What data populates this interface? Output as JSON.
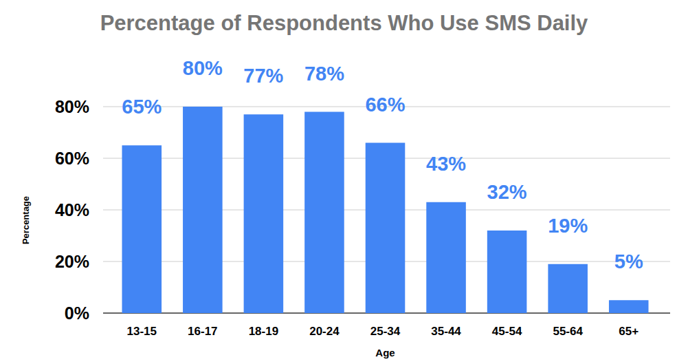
{
  "chart_data": {
    "type": "bar",
    "title": "Percentage of Respondents Who Use SMS Daily",
    "x_label": "Age",
    "y_label": "Percentage",
    "categories": [
      "13-15",
      "16-17",
      "18-19",
      "20-24",
      "25-34",
      "35-44",
      "45-54",
      "55-64",
      "65+"
    ],
    "values": [
      65,
      80,
      77,
      78,
      66,
      43,
      32,
      19,
      5
    ],
    "value_labels": [
      "65%",
      "80%",
      "77%",
      "78%",
      "66%",
      "43%",
      "32%",
      "19%",
      "5%"
    ],
    "color": "#4285f4",
    "ylim": [
      0,
      80
    ],
    "yticks": [
      {
        "value": 0,
        "label": "0%"
      },
      {
        "value": 20,
        "label": "20%"
      },
      {
        "value": 40,
        "label": "40%"
      },
      {
        "value": 60,
        "label": "60%"
      },
      {
        "value": 80,
        "label": "80%"
      }
    ],
    "grid": true,
    "data_labels": true
  }
}
